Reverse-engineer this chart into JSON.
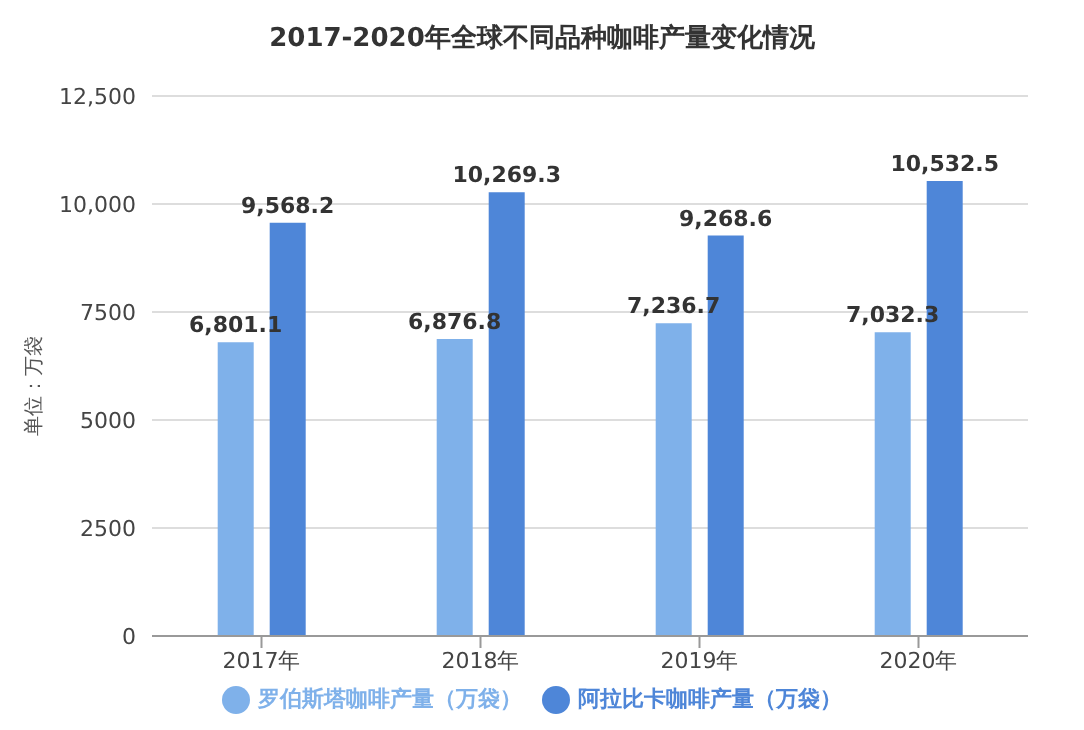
{
  "chart_data": {
    "type": "bar",
    "title": "2017-2020年全球不同品种咖啡产量变化情况",
    "ylabel": "单位：万袋",
    "categories": [
      "2017年",
      "2018年",
      "2019年",
      "2020年"
    ],
    "series": [
      {
        "name": "罗伯斯塔咖啡产量（万袋）",
        "color": "#7fb1ea",
        "values": [
          6801.1,
          6876.8,
          7236.7,
          7032.3
        ],
        "value_labels": [
          "6,801.1",
          "6,876.8",
          "7,236.7",
          "7,032.3"
        ]
      },
      {
        "name": "阿拉比卡咖啡产量（万袋）",
        "color": "#4e86d8",
        "values": [
          9568.2,
          10269.3,
          9268.6,
          10532.5
        ],
        "value_labels": [
          "9,568.2",
          "10,269.3",
          "9,268.6",
          "10,532.5"
        ]
      }
    ],
    "ylim": [
      0,
      12500
    ],
    "yticks": [
      0,
      2500,
      5000,
      7500,
      {
        "value": 10000,
        "label": "10,000"
      },
      {
        "value": 12500,
        "label": "12,500"
      }
    ],
    "grid": "y",
    "legend": "bottom"
  }
}
